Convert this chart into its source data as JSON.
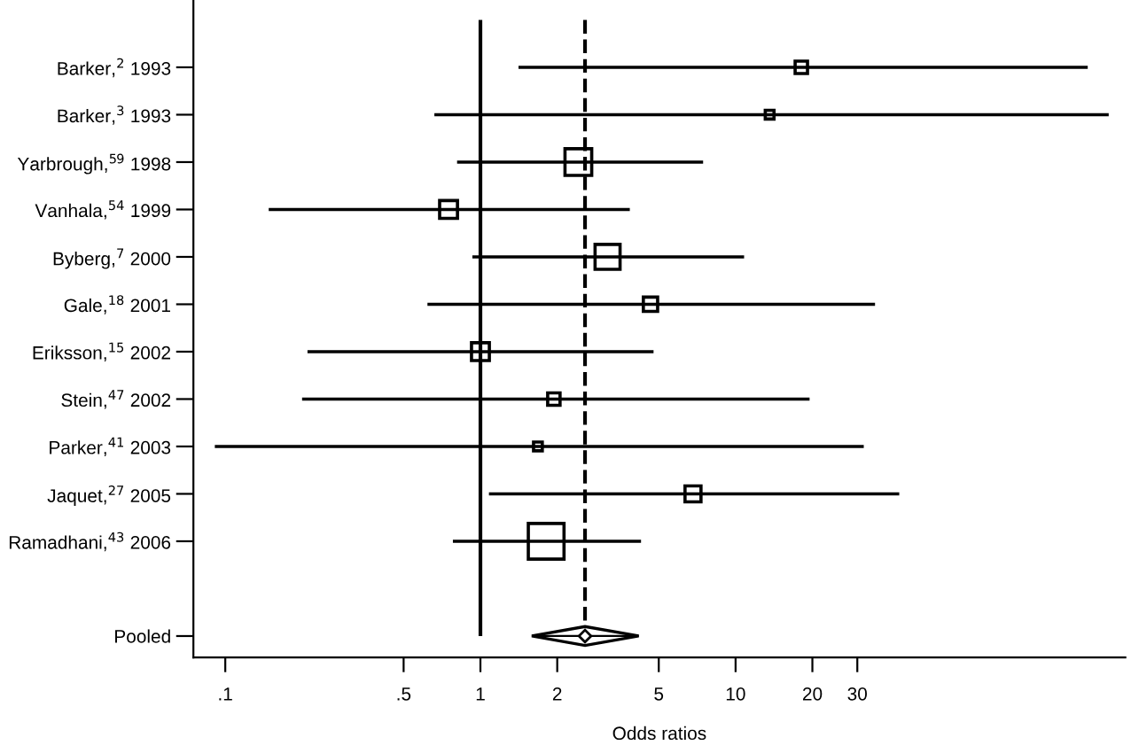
{
  "chart_data": {
    "type": "scatter",
    "orientation": "horizontal",
    "xlabel": "Odds ratios",
    "categories": [
      "Barker,$^{2}$ 1993",
      "Barker,$^{3}$ 1993",
      "Yarbrough,$^{59}$ 1998",
      "Vanhala,$^{54}$ 1999",
      "Byberg,$^{7}$ 2000",
      "Gale,$^{18}$ 2001",
      "Eriksson,$^{15}$ 2002",
      "Stein,$^{47}$ 2002",
      "Parker,$^{41}$ 2003",
      "Jaquet,$^{27}$ 2005",
      "Ramadhani,$^{43}$ 2006",
      null,
      "Pooled"
    ],
    "series": [
      {
        "color": "#000000",
        "marker": "square",
        "values": [
          18.1,
          13.6,
          2.42,
          0.75,
          3.15,
          4.64,
          1.0,
          1.94,
          1.68,
          6.81,
          1.81,
          null,
          null
        ],
        "sizes": [
          0.12,
          0.06,
          0.56,
          0.25,
          0.49,
          0.16,
          0.25,
          0.12,
          0.06,
          0.2,
          1,
          null,
          null
        ],
        "errors": [
          [
            1.41,
            240
          ],
          [
            0.66,
            290
          ],
          [
            0.81,
            7.46
          ],
          [
            0.148,
            3.85
          ],
          [
            0.93,
            10.8
          ],
          [
            0.62,
            35.2
          ],
          [
            0.21,
            4.77
          ],
          [
            0.2,
            19.5
          ],
          [
            0.091,
            31.8
          ],
          [
            1.08,
            43.8
          ],
          [
            0.78,
            4.26
          ],
          null,
          null
        ]
      },
      {
        "color": "#000000",
        "marker": "diamond",
        "values": [
          null,
          null,
          null,
          null,
          null,
          null,
          null,
          null,
          null,
          null,
          null,
          null,
          2.57
        ],
        "errors": [
          null,
          null,
          null,
          null,
          null,
          null,
          null,
          null,
          null,
          null,
          null,
          null,
          [
            1.59,
            4.17
          ]
        ]
      }
    ],
    "ref_lines": [
      {
        "axis": "x",
        "value": 1,
        "line_style": "solid",
        "color": "#000000"
      },
      {
        "axis": "x",
        "value": 2.57,
        "line_style": "dashed",
        "color": "#000000"
      }
    ],
    "log": "x",
    "xlim": [
      0.075,
      337
    ],
    "xticks": [
      {
        "value": 0.1,
        "label": ".1"
      },
      {
        "value": 0.5,
        "label": ".5"
      },
      1,
      2,
      5,
      10,
      20,
      30
    ],
    "grid": false
  }
}
